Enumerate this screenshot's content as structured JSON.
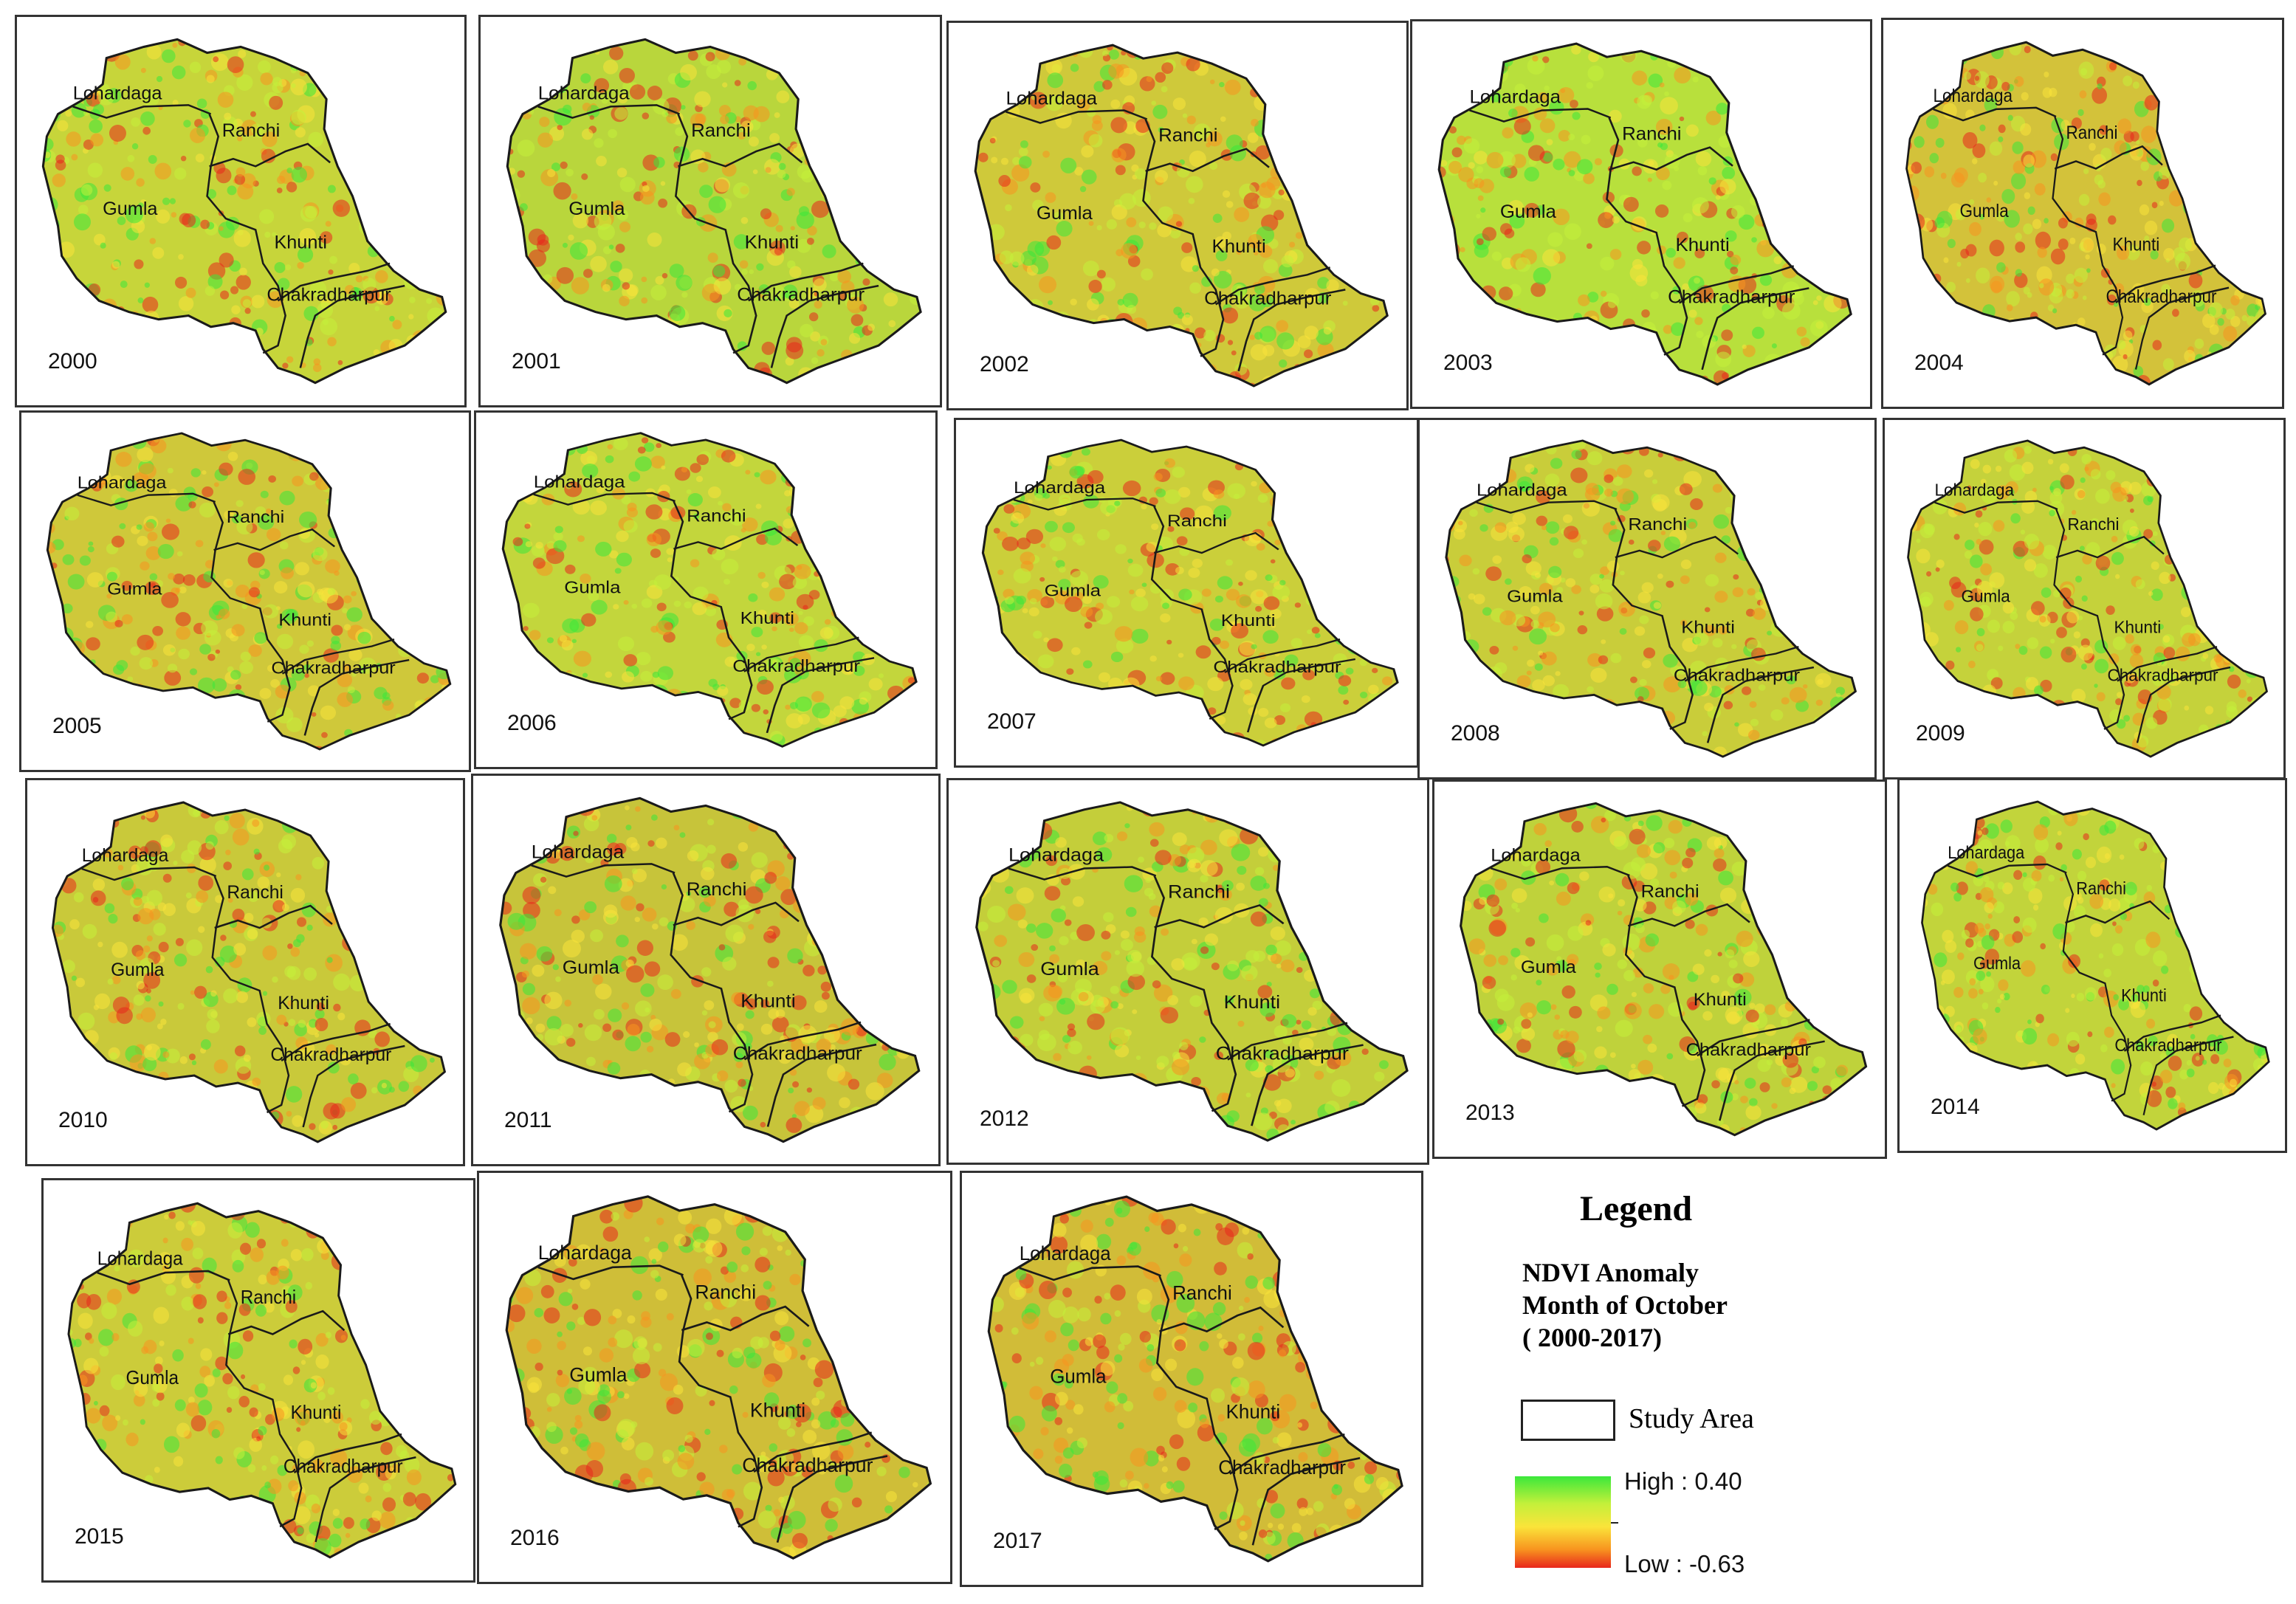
{
  "district_names": [
    "Lohardaga",
    "Ranchi",
    "Gumla",
    "Khunti",
    "Chakradharpur"
  ],
  "maps": [
    {
      "year": "2000",
      "tint": "#c7d53a"
    },
    {
      "year": "2001",
      "tint": "#b9d63c"
    },
    {
      "year": "2002",
      "tint": "#cfc93a"
    },
    {
      "year": "2003",
      "tint": "#b8e03c"
    },
    {
      "year": "2004",
      "tint": "#d3c23a"
    },
    {
      "year": "2005",
      "tint": "#cfc83a"
    },
    {
      "year": "2006",
      "tint": "#c3d63c"
    },
    {
      "year": "2007",
      "tint": "#cbcf3a"
    },
    {
      "year": "2008",
      "tint": "#c9cd3a"
    },
    {
      "year": "2009",
      "tint": "#c5d23b"
    },
    {
      "year": "2010",
      "tint": "#c9c93a"
    },
    {
      "year": "2011",
      "tint": "#c7c43a"
    },
    {
      "year": "2012",
      "tint": "#c4ce3a"
    },
    {
      "year": "2013",
      "tint": "#bfd23b"
    },
    {
      "year": "2014",
      "tint": "#c2d43b"
    },
    {
      "year": "2015",
      "tint": "#cccc3a"
    },
    {
      "year": "2016",
      "tint": "#cfbe38"
    },
    {
      "year": "2017",
      "tint": "#d1bc38"
    }
  ],
  "legend": {
    "title": "Legend",
    "subtitle_line1": "NDVI Anomaly",
    "subtitle_line2": "Month of October",
    "subtitle_line3": "( 2000-2017)",
    "study_area_label": "Study Area",
    "high_label": "High : 0.40",
    "low_label": "Low : -0.63",
    "ramp_colors": [
      "#3be83b",
      "#c4f03a",
      "#fae43a",
      "#f8941f",
      "#e8271c"
    ]
  }
}
